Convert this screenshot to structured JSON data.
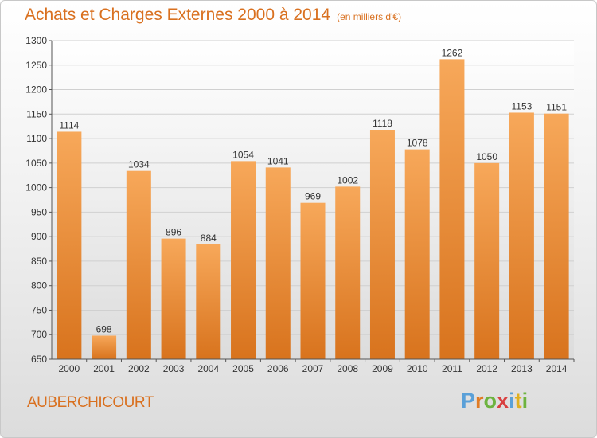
{
  "header": {
    "title": "Achats et Charges Externes 2000 à 2014",
    "subtitle": "(en milliers d'€)"
  },
  "footer": {
    "commune": "AUBERCHICOURT",
    "logo_text": "Proxiti",
    "logo_letters": [
      {
        "char": "P",
        "color": "#5aa0d8"
      },
      {
        "char": "r",
        "color": "#e07b24"
      },
      {
        "char": "o",
        "color": "#6db33f"
      },
      {
        "char": "x",
        "color": "#d94040"
      },
      {
        "char": "i",
        "color": "#5aa0d8"
      },
      {
        "char": "t",
        "color": "#e0b020"
      },
      {
        "char": "i",
        "color": "#6db33f"
      }
    ]
  },
  "colors": {
    "bar_top": "#f7a85a",
    "bar_bottom": "#d8731d",
    "accent": "#d9701f"
  },
  "chart_data": {
    "type": "bar",
    "title": "Achats et Charges Externes 2000 à 2014",
    "subtitle": "(en milliers d'€)",
    "xlabel": "",
    "ylabel": "",
    "categories": [
      "2000",
      "2001",
      "2002",
      "2003",
      "2004",
      "2005",
      "2006",
      "2007",
      "2008",
      "2009",
      "2010",
      "2011",
      "2012",
      "2013",
      "2014"
    ],
    "values": [
      1114,
      698,
      1034,
      896,
      884,
      1054,
      1041,
      969,
      1002,
      1118,
      1078,
      1262,
      1050,
      1153,
      1151
    ],
    "ylim": [
      650,
      1300
    ],
    "yticks": [
      650,
      700,
      750,
      800,
      850,
      900,
      950,
      1000,
      1050,
      1100,
      1150,
      1200,
      1250,
      1300
    ],
    "grid": true,
    "legend": "none"
  }
}
